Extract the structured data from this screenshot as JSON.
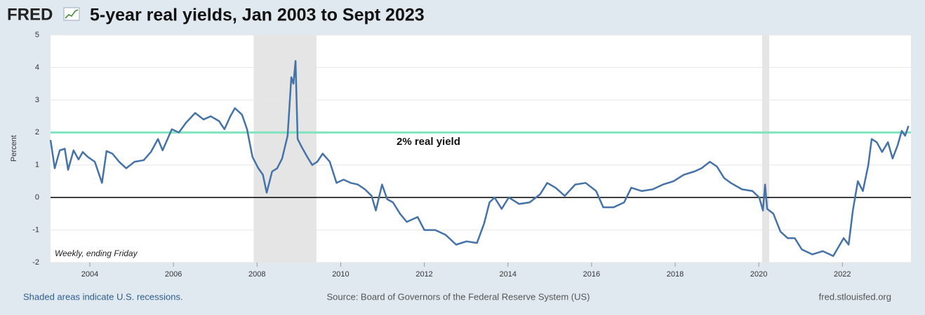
{
  "logo": "FRED",
  "chart_data": {
    "type": "line",
    "title": "5-year real yields, Jan 2003 to Sept 2023",
    "y_label": "Percent",
    "note": "Weekly, ending Friday",
    "annotation": "2% real yield",
    "xlim": [
      2003.06,
      2023.64
    ],
    "xticks": [
      2004,
      2006,
      2008,
      2010,
      2012,
      2014,
      2016,
      2018,
      2020,
      2022
    ],
    "ylim": [
      -2,
      5
    ],
    "yticks": [
      -2,
      -1,
      0,
      1,
      2,
      3,
      4,
      5
    ],
    "grid": true,
    "recessions": [
      [
        2007.92,
        2009.42
      ],
      [
        2020.08,
        2020.25
      ]
    ],
    "hline": {
      "value": 2,
      "color": "#7fe3bd"
    },
    "x": [
      2003.06,
      2003.16,
      2003.28,
      2003.4,
      2003.48,
      2003.61,
      2003.73,
      2003.83,
      2003.95,
      2004.12,
      2004.29,
      2004.4,
      2004.54,
      2004.7,
      2004.87,
      2005.07,
      2005.29,
      2005.46,
      2005.63,
      2005.74,
      2005.96,
      2006.13,
      2006.3,
      2006.52,
      2006.72,
      2006.89,
      2007.09,
      2007.22,
      2007.36,
      2007.47,
      2007.64,
      2007.76,
      2007.89,
      2008.03,
      2008.14,
      2008.23,
      2008.36,
      2008.48,
      2008.6,
      2008.73,
      2008.82,
      2008.87,
      2008.92,
      2008.97,
      2009.07,
      2009.2,
      2009.32,
      2009.44,
      2009.57,
      2009.74,
      2009.9,
      2010.07,
      2010.24,
      2010.41,
      2010.58,
      2010.74,
      2010.84,
      2010.99,
      2011.11,
      2011.25,
      2011.42,
      2011.58,
      2011.84,
      2012.0,
      2012.26,
      2012.51,
      2012.76,
      2013.01,
      2013.26,
      2013.43,
      2013.56,
      2013.68,
      2013.85,
      2014.02,
      2014.27,
      2014.52,
      2014.77,
      2014.94,
      2015.14,
      2015.36,
      2015.61,
      2015.86,
      2016.11,
      2016.28,
      2016.53,
      2016.78,
      2016.95,
      2017.2,
      2017.46,
      2017.71,
      2017.96,
      2018.21,
      2018.46,
      2018.63,
      2018.83,
      2019.0,
      2019.17,
      2019.33,
      2019.6,
      2019.85,
      2020.01,
      2020.1,
      2020.15,
      2020.2,
      2020.35,
      2020.52,
      2020.69,
      2020.86,
      2021.03,
      2021.28,
      2021.53,
      2021.78,
      2022.03,
      2022.15,
      2022.25,
      2022.37,
      2022.49,
      2022.62,
      2022.7,
      2022.82,
      2022.95,
      2023.09,
      2023.2,
      2023.32,
      2023.42,
      2023.5,
      2023.58
    ],
    "series": [
      {
        "name": "5-year real yield",
        "color": "#4572a7",
        "values": [
          1.77,
          0.9,
          1.45,
          1.5,
          0.85,
          1.45,
          1.17,
          1.4,
          1.25,
          1.1,
          0.45,
          1.43,
          1.35,
          1.1,
          0.9,
          1.1,
          1.15,
          1.4,
          1.8,
          1.45,
          2.1,
          2.0,
          2.3,
          2.6,
          2.4,
          2.5,
          2.35,
          2.1,
          2.5,
          2.75,
          2.55,
          2.1,
          1.25,
          0.9,
          0.7,
          0.15,
          0.8,
          0.9,
          1.2,
          1.9,
          3.7,
          3.5,
          4.2,
          1.8,
          1.55,
          1.25,
          1.0,
          1.1,
          1.35,
          1.1,
          0.45,
          0.55,
          0.45,
          0.4,
          0.25,
          0.05,
          -0.4,
          0.4,
          -0.05,
          -0.15,
          -0.5,
          -0.75,
          -0.6,
          -1.0,
          -1.0,
          -1.15,
          -1.45,
          -1.35,
          -1.4,
          -0.8,
          -0.15,
          0.0,
          -0.35,
          0.0,
          -0.2,
          -0.15,
          0.1,
          0.45,
          0.3,
          0.05,
          0.4,
          0.45,
          0.2,
          -0.3,
          -0.3,
          -0.15,
          0.3,
          0.2,
          0.25,
          0.4,
          0.5,
          0.7,
          0.8,
          0.9,
          1.1,
          0.95,
          0.6,
          0.45,
          0.25,
          0.2,
          0.0,
          -0.4,
          0.4,
          -0.35,
          -0.5,
          -1.05,
          -1.25,
          -1.25,
          -1.6,
          -1.75,
          -1.65,
          -1.8,
          -1.25,
          -1.45,
          -0.4,
          0.5,
          0.2,
          1.0,
          1.8,
          1.7,
          1.4,
          1.7,
          1.2,
          1.6,
          2.05,
          1.9,
          2.2
        ]
      }
    ]
  },
  "footer": {
    "left": "Shaded areas indicate U.S. recessions.",
    "center": "Source: Board of Governors of the Federal Reserve System (US)",
    "right": "fred.stlouisfed.org"
  }
}
